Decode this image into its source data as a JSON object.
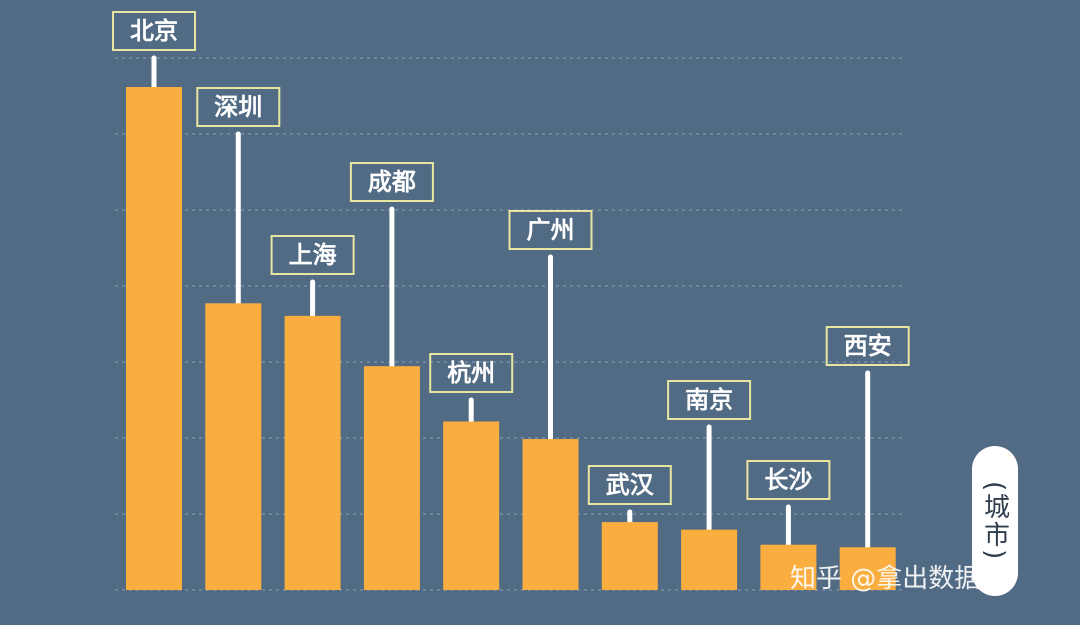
{
  "chart_data": {
    "type": "bar",
    "title": "",
    "xlabel": "(城市)",
    "ylabel": "",
    "categories": [
      "北京",
      "深圳",
      "上海",
      "成都",
      "杭州",
      "广州",
      "武汉",
      "南京",
      "长沙",
      "西安"
    ],
    "values": [
      100,
      57,
      54.5,
      44.5,
      33.5,
      30,
      13.5,
      12,
      9,
      8.5
    ],
    "ylim": [
      0,
      100
    ],
    "grid": true,
    "colors": {
      "background": "#526b84",
      "bar": "#fbae40",
      "label_border": "#e6e6a0",
      "connector": "#ffffff",
      "grid": "#8fa3b8"
    }
  },
  "watermark": "知乎 @拿出数据君"
}
